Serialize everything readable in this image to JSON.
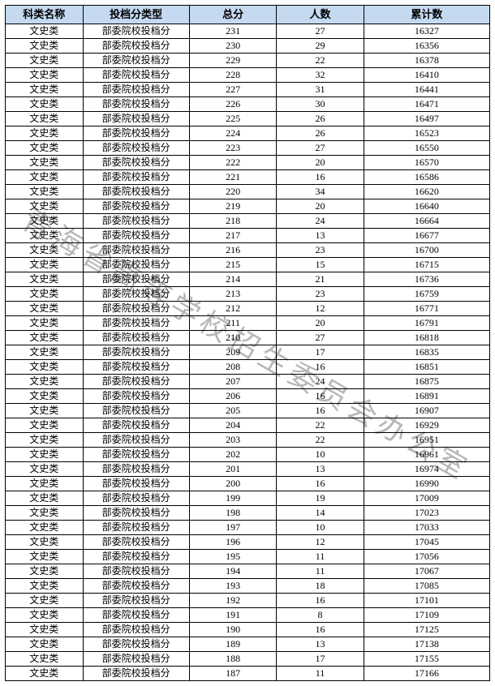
{
  "watermark": "青海省高等学校招生委员会办公室",
  "columns": [
    "科类名称",
    "投档分类型",
    "总分",
    "人数",
    "累计数"
  ],
  "subject": "文史类",
  "type": "部委院校投档分",
  "header_bg": "#c5d9f1",
  "border_color": "#000000",
  "font_size_header": 13,
  "font_size_cell": 12,
  "rows": [
    {
      "score": 231,
      "count": 27,
      "cum": 16327
    },
    {
      "score": 230,
      "count": 29,
      "cum": 16356
    },
    {
      "score": 229,
      "count": 22,
      "cum": 16378
    },
    {
      "score": 228,
      "count": 32,
      "cum": 16410
    },
    {
      "score": 227,
      "count": 31,
      "cum": 16441
    },
    {
      "score": 226,
      "count": 30,
      "cum": 16471
    },
    {
      "score": 225,
      "count": 26,
      "cum": 16497
    },
    {
      "score": 224,
      "count": 26,
      "cum": 16523
    },
    {
      "score": 223,
      "count": 27,
      "cum": 16550
    },
    {
      "score": 222,
      "count": 20,
      "cum": 16570
    },
    {
      "score": 221,
      "count": 16,
      "cum": 16586
    },
    {
      "score": 220,
      "count": 34,
      "cum": 16620
    },
    {
      "score": 219,
      "count": 20,
      "cum": 16640
    },
    {
      "score": 218,
      "count": 24,
      "cum": 16664
    },
    {
      "score": 217,
      "count": 13,
      "cum": 16677
    },
    {
      "score": 216,
      "count": 23,
      "cum": 16700
    },
    {
      "score": 215,
      "count": 15,
      "cum": 16715
    },
    {
      "score": 214,
      "count": 21,
      "cum": 16736
    },
    {
      "score": 213,
      "count": 23,
      "cum": 16759
    },
    {
      "score": 212,
      "count": 12,
      "cum": 16771
    },
    {
      "score": 211,
      "count": 20,
      "cum": 16791
    },
    {
      "score": 210,
      "count": 27,
      "cum": 16818
    },
    {
      "score": 209,
      "count": 17,
      "cum": 16835
    },
    {
      "score": 208,
      "count": 16,
      "cum": 16851
    },
    {
      "score": 207,
      "count": 24,
      "cum": 16875
    },
    {
      "score": 206,
      "count": 16,
      "cum": 16891
    },
    {
      "score": 205,
      "count": 16,
      "cum": 16907
    },
    {
      "score": 204,
      "count": 22,
      "cum": 16929
    },
    {
      "score": 203,
      "count": 22,
      "cum": 16951
    },
    {
      "score": 202,
      "count": 10,
      "cum": 16961
    },
    {
      "score": 201,
      "count": 13,
      "cum": 16974
    },
    {
      "score": 200,
      "count": 16,
      "cum": 16990
    },
    {
      "score": 199,
      "count": 19,
      "cum": 17009
    },
    {
      "score": 198,
      "count": 14,
      "cum": 17023
    },
    {
      "score": 197,
      "count": 10,
      "cum": 17033
    },
    {
      "score": 196,
      "count": 12,
      "cum": 17045
    },
    {
      "score": 195,
      "count": 11,
      "cum": 17056
    },
    {
      "score": 194,
      "count": 11,
      "cum": 17067
    },
    {
      "score": 193,
      "count": 18,
      "cum": 17085
    },
    {
      "score": 192,
      "count": 16,
      "cum": 17101
    },
    {
      "score": 191,
      "count": 8,
      "cum": 17109
    },
    {
      "score": 190,
      "count": 16,
      "cum": 17125
    },
    {
      "score": 189,
      "count": 13,
      "cum": 17138
    },
    {
      "score": 188,
      "count": 17,
      "cum": 17155
    },
    {
      "score": 187,
      "count": 11,
      "cum": 17166
    }
  ]
}
